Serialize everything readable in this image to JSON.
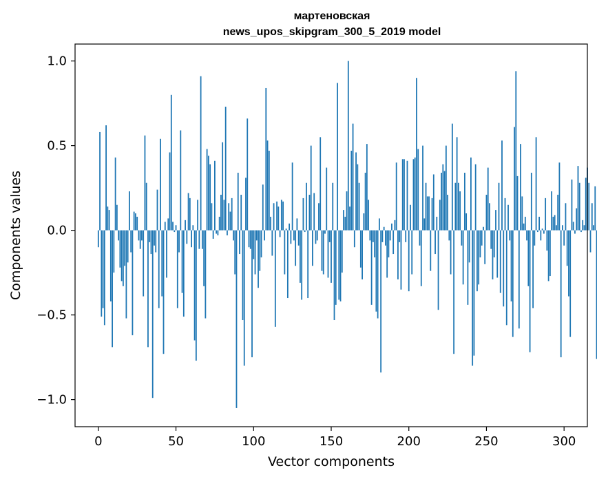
{
  "chart_data": {
    "type": "bar",
    "title_line1": "мартеновская",
    "title_line2": "news_upos_skipgram_300_5_2019 model",
    "xlabel": "Vector components",
    "ylabel": "Components values",
    "xlim": [
      -15,
      315
    ],
    "ylim": [
      -1.16,
      1.1
    ],
    "x_ticks": [
      0,
      50,
      100,
      150,
      200,
      250,
      300
    ],
    "x_tick_labels": [
      "0",
      "50",
      "100",
      "150",
      "200",
      "250",
      "300"
    ],
    "y_ticks": [
      1.0,
      0.5,
      0.0,
      -0.5,
      -1.0
    ],
    "y_tick_labels": [
      "1.0",
      "0.5",
      "0.0",
      "−0.5",
      "−1.0"
    ],
    "bar_color": "#1f77b4",
    "values": [
      -0.1,
      0.58,
      -0.51,
      -0.46,
      -0.56,
      0.62,
      0.14,
      0.12,
      -0.42,
      -0.69,
      -0.25,
      0.43,
      0.15,
      -0.06,
      -0.22,
      -0.3,
      -0.33,
      -0.21,
      -0.52,
      -0.19,
      0.23,
      -0.13,
      -0.62,
      0.11,
      0.1,
      0.08,
      -0.06,
      -0.11,
      -0.06,
      -0.39,
      0.56,
      0.28,
      -0.69,
      -0.07,
      -0.14,
      -0.99,
      -0.09,
      -0.13,
      0.24,
      -0.46,
      0.54,
      -0.39,
      -0.73,
      0.05,
      -0.28,
      0.07,
      0.46,
      0.8,
      0.05,
      -0.01,
      0.03,
      -0.46,
      -0.13,
      0.59,
      -0.37,
      -0.51,
      0.06,
      -0.08,
      0.22,
      0.19,
      -0.1,
      0.03,
      -0.65,
      -0.77,
      0.18,
      -0.11,
      0.91,
      -0.11,
      -0.33,
      -0.52,
      0.48,
      0.44,
      0.39,
      0.16,
      -0.05,
      0.41,
      -0.02,
      -0.03,
      0.08,
      0.21,
      0.52,
      0.18,
      0.73,
      -0.03,
      0.16,
      0.11,
      0.19,
      -0.06,
      -0.26,
      -1.05,
      0.34,
      -0.14,
      0.21,
      -0.53,
      -0.8,
      0.31,
      0.66,
      -0.1,
      -0.11,
      -0.75,
      -0.17,
      -0.26,
      -0.06,
      -0.34,
      -0.24,
      -0.16,
      0.27,
      -0.06,
      0.84,
      0.53,
      0.47,
      0.08,
      -0.15,
      0.16,
      -0.57,
      0.17,
      0.14,
      -0.04,
      0.18,
      0.17,
      -0.26,
      0.01,
      -0.4,
      0.04,
      -0.08,
      0.4,
      -0.06,
      -0.21,
      0.07,
      -0.09,
      -0.31,
      -0.41,
      0.19,
      -0.01,
      0.28,
      -0.4,
      0.21,
      0.5,
      -0.21,
      0.22,
      -0.08,
      -0.06,
      0.16,
      0.55,
      -0.24,
      -0.26,
      -0.02,
      0.37,
      -0.28,
      -0.07,
      -0.31,
      0.28,
      -0.53,
      -0.44,
      0.87,
      -0.41,
      -0.42,
      -0.25,
      0.12,
      0.08,
      0.23,
      1.0,
      0.14,
      0.47,
      0.63,
      -0.1,
      0.46,
      0.39,
      0.28,
      -0.22,
      -0.29,
      0.1,
      0.34,
      0.51,
      0.18,
      -0.06,
      -0.44,
      -0.07,
      -0.16,
      -0.48,
      -0.52,
      0.07,
      -0.84,
      -0.07,
      0.02,
      -0.09,
      -0.28,
      -0.16,
      -0.06,
      0.04,
      -0.14,
      0.06,
      0.4,
      -0.29,
      -0.07,
      -0.35,
      0.42,
      0.42,
      -0.07,
      0.41,
      -0.36,
      0.15,
      -0.26,
      0.42,
      0.43,
      0.9,
      0.48,
      -0.09,
      -0.33,
      0.5,
      0.07,
      0.28,
      0.2,
      0.2,
      -0.24,
      0.19,
      0.33,
      -0.14,
      0.08,
      -0.47,
      0.18,
      0.34,
      0.39,
      0.35,
      0.5,
      0.21,
      -0.06,
      -0.26,
      0.63,
      -0.73,
      0.28,
      0.55,
      0.28,
      0.23,
      -0.09,
      -0.32,
      0.34,
      0.1,
      -0.44,
      -0.19,
      0.43,
      -0.8,
      -0.74,
      0.39,
      -0.36,
      -0.32,
      -0.16,
      -0.09,
      0.02,
      -0.2,
      0.21,
      0.37,
      0.16,
      -0.11,
      -0.29,
      -0.16,
      0.12,
      -0.28,
      0.28,
      -0.37,
      0.53,
      -0.45,
      0.19,
      -0.56,
      0.15,
      -0.06,
      -0.42,
      -0.63,
      0.61,
      0.94,
      0.32,
      -0.58,
      0.51,
      0.2,
      0.04,
      0.08,
      -0.06,
      -0.33,
      -0.72,
      0.34,
      -0.46,
      -0.09,
      0.55,
      -0.01,
      0.08,
      -0.06,
      0.01,
      -0.02,
      0.19,
      -0.12,
      -0.3,
      -0.27,
      0.23,
      0.08,
      0.09,
      0.03,
      0.21,
      0.4,
      -0.75,
      0.03,
      -0.09,
      0.16,
      -0.21,
      -0.39,
      -0.63,
      0.3,
      0.05,
      -0.02,
      0.13,
      0.38,
      0.28,
      -0.01,
      0.06,
      0.03,
      0.31,
      0.37,
      0.28,
      -0.13,
      0.16,
      0.03,
      0.26,
      -0.76,
      0.23,
      -0.18
    ]
  }
}
